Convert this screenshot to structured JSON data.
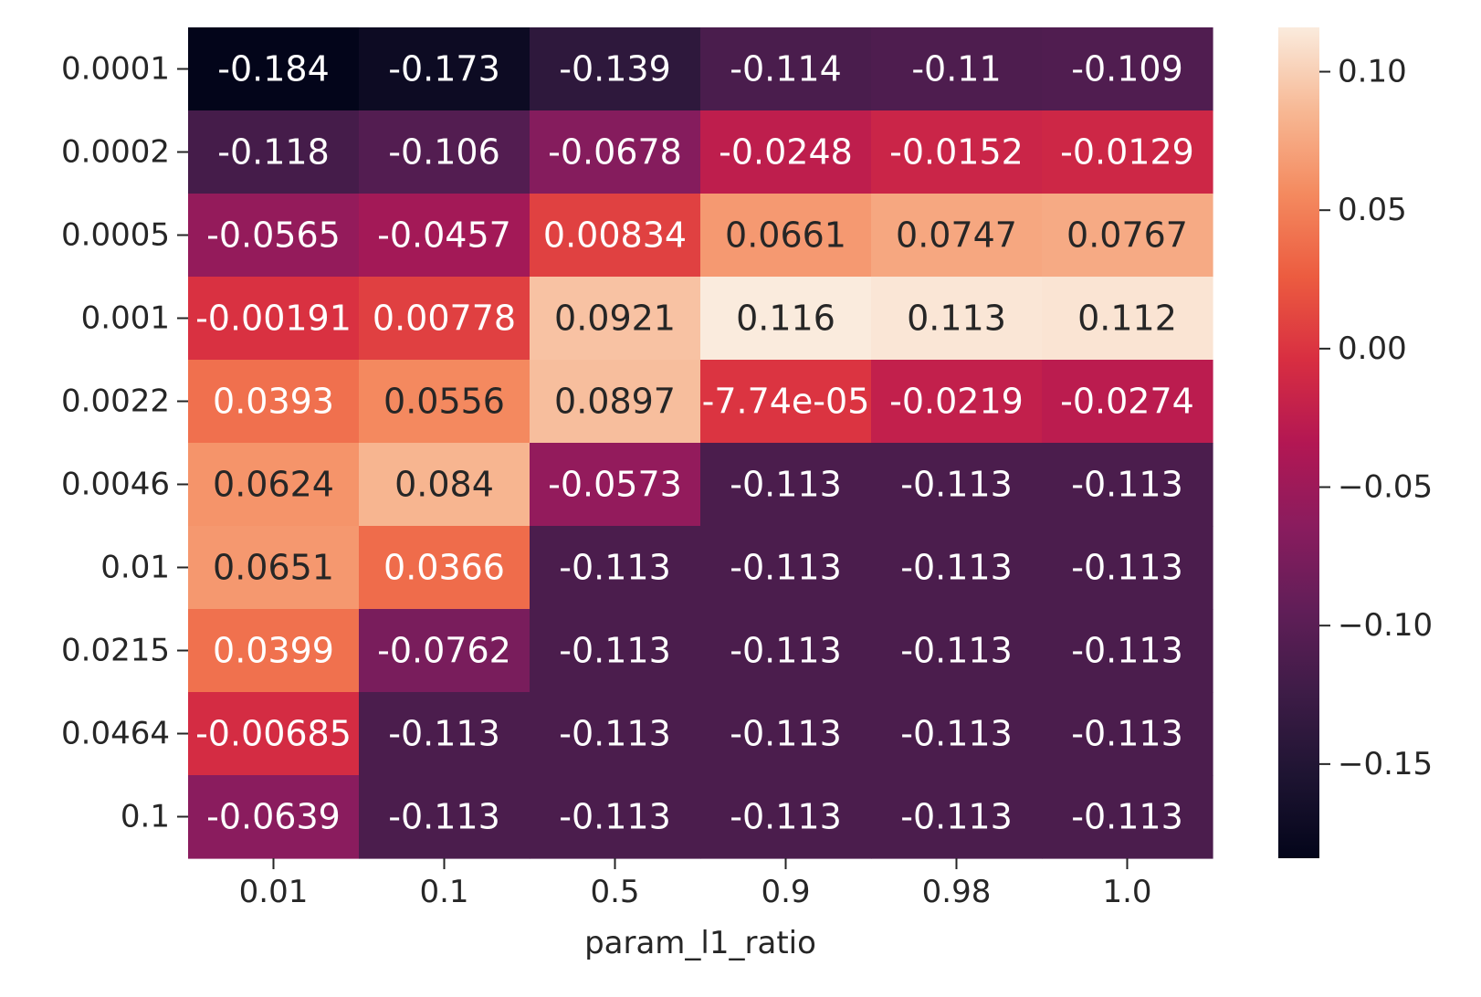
{
  "chart_data": {
    "type": "heatmap",
    "title": "",
    "xlabel": "param_l1_ratio",
    "ylabel": "",
    "x_categories": [
      "0.01",
      "0.1",
      "0.5",
      "0.9",
      "0.98",
      "1.0"
    ],
    "y_categories": [
      "0.0001",
      "0.0002",
      "0.0005",
      "0.001",
      "0.0022",
      "0.0046",
      "0.01",
      "0.0215",
      "0.0464",
      "0.1"
    ],
    "values": [
      [
        -0.184,
        -0.173,
        -0.139,
        -0.114,
        -0.11,
        -0.109
      ],
      [
        -0.118,
        -0.106,
        -0.0678,
        -0.0248,
        -0.0152,
        -0.0129
      ],
      [
        -0.0565,
        -0.0457,
        0.00834,
        0.0661,
        0.0747,
        0.0767
      ],
      [
        -0.00191,
        0.00778,
        0.0921,
        0.116,
        0.113,
        0.112
      ],
      [
        0.0393,
        0.0556,
        0.0897,
        -7.74e-05,
        -0.0219,
        -0.0274
      ],
      [
        0.0624,
        0.084,
        -0.0573,
        -0.113,
        -0.113,
        -0.113
      ],
      [
        0.0651,
        0.0366,
        -0.113,
        -0.113,
        -0.113,
        -0.113
      ],
      [
        0.0399,
        -0.0762,
        -0.113,
        -0.113,
        -0.113,
        -0.113
      ],
      [
        -0.00685,
        -0.113,
        -0.113,
        -0.113,
        -0.113,
        -0.113
      ],
      [
        -0.0639,
        -0.113,
        -0.113,
        -0.113,
        -0.113,
        -0.113
      ]
    ],
    "cell_labels": [
      [
        "-0.184",
        "-0.173",
        "-0.139",
        "-0.114",
        "-0.11",
        "-0.109"
      ],
      [
        "-0.118",
        "-0.106",
        "-0.0678",
        "-0.0248",
        "-0.0152",
        "-0.0129"
      ],
      [
        "-0.0565",
        "-0.0457",
        "0.00834",
        "0.0661",
        "0.0747",
        "0.0767"
      ],
      [
        "-0.00191",
        "0.00778",
        "0.0921",
        "0.116",
        "0.113",
        "0.112"
      ],
      [
        "0.0393",
        "0.0556",
        "0.0897",
        "-7.74e-05",
        "-0.0219",
        "-0.0274"
      ],
      [
        "0.0624",
        "0.084",
        "-0.0573",
        "-0.113",
        "-0.113",
        "-0.113"
      ],
      [
        "0.0651",
        "0.0366",
        "-0.113",
        "-0.113",
        "-0.113",
        "-0.113"
      ],
      [
        "0.0399",
        "-0.0762",
        "-0.113",
        "-0.113",
        "-0.113",
        "-0.113"
      ],
      [
        "-0.00685",
        "-0.113",
        "-0.113",
        "-0.113",
        "-0.113",
        "-0.113"
      ],
      [
        "-0.0639",
        "-0.113",
        "-0.113",
        "-0.113",
        "-0.113",
        "-0.113"
      ]
    ],
    "colormap": "rocket",
    "vmin": -0.184,
    "vmax": 0.116,
    "colorbar": {
      "ticks": [
        -0.15,
        -0.1,
        -0.05,
        0.0,
        0.05,
        0.1
      ],
      "tick_labels": [
        "−0.15",
        "−0.10",
        "−0.05",
        "0.00",
        "0.05",
        "0.10"
      ]
    },
    "annotation_colors": {
      "dark_cells": "#ffffff",
      "light_cells": "#262626"
    },
    "grid": false
  }
}
